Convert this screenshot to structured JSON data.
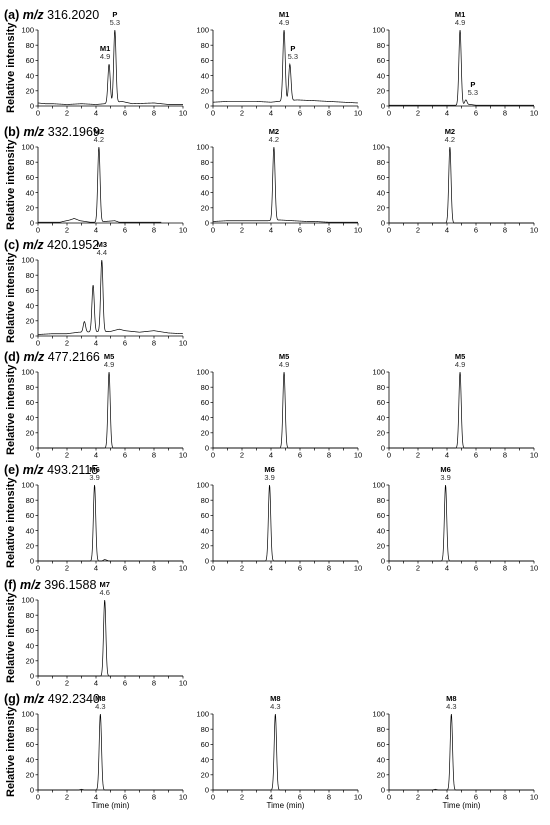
{
  "ylabel": "Relative intensity",
  "xlabel": "Time (min)",
  "chart_data": [
    {
      "type": "line",
      "row": "a",
      "id": "a1",
      "xlim": [
        0,
        10
      ],
      "ylim": [
        0,
        100
      ],
      "xticks": [
        0,
        1,
        2,
        3,
        4,
        5,
        6,
        7,
        8,
        9,
        10
      ],
      "yticks": [
        0,
        20,
        40,
        60,
        80,
        100
      ],
      "peaks": [
        {
          "label": "M1",
          "rt": "4.9",
          "x": 4.9,
          "y": 55
        },
        {
          "label": "P",
          "rt": "5.3",
          "x": 5.3,
          "y": 100
        }
      ],
      "baseline": [
        [
          0,
          4
        ],
        [
          0.5,
          3
        ],
        [
          1,
          3
        ],
        [
          2,
          2
        ],
        [
          3,
          3
        ],
        [
          4,
          2
        ],
        [
          4.6,
          3
        ],
        [
          5.8,
          6
        ],
        [
          6.5,
          3
        ],
        [
          8,
          4
        ],
        [
          9,
          2
        ],
        [
          10,
          2
        ]
      ]
    },
    {
      "type": "line",
      "row": "a",
      "id": "a2",
      "xlim": [
        0,
        10
      ],
      "ylim": [
        0,
        100
      ],
      "xticks": [
        0,
        1,
        2,
        3,
        4,
        5,
        6,
        7,
        8,
        9,
        10
      ],
      "yticks": [
        0,
        20,
        40,
        60,
        80,
        100
      ],
      "peaks": [
        {
          "label": "M1",
          "rt": "4.9",
          "x": 4.9,
          "y": 100
        },
        {
          "label": "P",
          "rt": "5.3",
          "x": 5.3,
          "y": 55
        }
      ],
      "baseline": [
        [
          0,
          5
        ],
        [
          1,
          6
        ],
        [
          2,
          6
        ],
        [
          3,
          6
        ],
        [
          4,
          5
        ],
        [
          4.5,
          6
        ],
        [
          5.8,
          8
        ],
        [
          7,
          7
        ],
        [
          8,
          6
        ],
        [
          9,
          5
        ],
        [
          10,
          4
        ]
      ]
    },
    {
      "type": "line",
      "row": "a",
      "id": "a3",
      "xlim": [
        0,
        10
      ],
      "ylim": [
        0,
        100
      ],
      "xticks": [
        0,
        1,
        2,
        3,
        4,
        5,
        6,
        7,
        8,
        9,
        10
      ],
      "yticks": [
        0,
        20,
        40,
        60,
        80,
        100
      ],
      "peaks": [
        {
          "label": "M1",
          "rt": "4.9",
          "x": 4.9,
          "y": 100
        },
        {
          "label": "P",
          "rt": "5.3",
          "x": 5.3,
          "y": 8
        }
      ],
      "baseline": [
        [
          0,
          1
        ],
        [
          2,
          1
        ],
        [
          4,
          1
        ],
        [
          4.6,
          1
        ],
        [
          5.6,
          2
        ],
        [
          6,
          1
        ],
        [
          8,
          1
        ],
        [
          10,
          1
        ]
      ]
    },
    {
      "type": "line",
      "row": "b",
      "id": "b1",
      "xlim": [
        0,
        10
      ],
      "ylim": [
        0,
        100
      ],
      "xticks": [
        0,
        1,
        2,
        3,
        4,
        5,
        6,
        7,
        8,
        9,
        10
      ],
      "yticks": [
        0,
        20,
        40,
        60,
        80,
        100
      ],
      "peaks": [
        {
          "label": "M2",
          "rt": "4.2",
          "x": 4.2,
          "y": 100
        }
      ],
      "baseline": [
        [
          0,
          1
        ],
        [
          1.5,
          1
        ],
        [
          2.2,
          4
        ],
        [
          2.5,
          6
        ],
        [
          2.9,
          3
        ],
        [
          3.6,
          1
        ],
        [
          3.9,
          1
        ],
        [
          4.6,
          2
        ],
        [
          5.3,
          3
        ],
        [
          5.6,
          1
        ],
        [
          7,
          1
        ],
        [
          8.5,
          1
        ]
      ]
    },
    {
      "type": "line",
      "row": "b",
      "id": "b2",
      "xlim": [
        0,
        10
      ],
      "ylim": [
        0,
        100
      ],
      "xticks": [
        0,
        1,
        2,
        3,
        4,
        5,
        6,
        7,
        8,
        9,
        10
      ],
      "yticks": [
        0,
        20,
        40,
        60,
        80,
        100
      ],
      "peaks": [
        {
          "label": "M2",
          "rt": "4.2",
          "x": 4.2,
          "y": 100
        }
      ],
      "baseline": [
        [
          0,
          2
        ],
        [
          1,
          3
        ],
        [
          2,
          3
        ],
        [
          3,
          3
        ],
        [
          3.8,
          3
        ],
        [
          4.6,
          4
        ],
        [
          5.5,
          3
        ],
        [
          6.5,
          2
        ],
        [
          7,
          2
        ],
        [
          8,
          1
        ],
        [
          10,
          1
        ]
      ]
    },
    {
      "type": "line",
      "row": "b",
      "id": "b3",
      "xlim": [
        0,
        10
      ],
      "ylim": [
        0,
        100
      ],
      "xticks": [
        0,
        1,
        2,
        3,
        4,
        5,
        6,
        7,
        8,
        9,
        10
      ],
      "yticks": [
        0,
        20,
        40,
        60,
        80,
        100
      ],
      "peaks": [
        {
          "label": "M2",
          "rt": "4.2",
          "x": 4.2,
          "y": 100
        }
      ],
      "baseline": [
        [
          0,
          0
        ],
        [
          10,
          0
        ]
      ]
    },
    {
      "type": "line",
      "row": "c",
      "id": "c1",
      "xlim": [
        0,
        10
      ],
      "ylim": [
        0,
        100
      ],
      "xticks": [
        0,
        1,
        2,
        3,
        4,
        5,
        6,
        7,
        8,
        9,
        10
      ],
      "yticks": [
        0,
        20,
        40,
        60,
        80,
        100
      ],
      "peaks": [
        {
          "label": "M3",
          "rt": "4.4",
          "x": 4.4,
          "y": 100
        },
        {
          "label": "",
          "rt": "",
          "x": 3.8,
          "y": 67
        },
        {
          "label": "",
          "rt": "",
          "x": 3.2,
          "y": 19
        }
      ],
      "baseline": [
        [
          0,
          2
        ],
        [
          1,
          3
        ],
        [
          2,
          3
        ],
        [
          2.8,
          5
        ],
        [
          5,
          6
        ],
        [
          5.6,
          9
        ],
        [
          6,
          7
        ],
        [
          7,
          5
        ],
        [
          8,
          7
        ],
        [
          9,
          4
        ],
        [
          10,
          3
        ]
      ]
    },
    {
      "type": "line",
      "row": "d",
      "id": "d1",
      "xlim": [
        0,
        10
      ],
      "ylim": [
        0,
        100
      ],
      "xticks": [
        0,
        1,
        2,
        3,
        4,
        5,
        6,
        7,
        8,
        9,
        10
      ],
      "yticks": [
        0,
        20,
        40,
        60,
        80,
        100
      ],
      "peaks": [
        {
          "label": "M5",
          "rt": "4.9",
          "x": 4.9,
          "y": 100
        }
      ],
      "baseline": [
        [
          0,
          0
        ],
        [
          10,
          0
        ]
      ]
    },
    {
      "type": "line",
      "row": "d",
      "id": "d2",
      "xlim": [
        0,
        10
      ],
      "ylim": [
        0,
        100
      ],
      "xticks": [
        0,
        1,
        2,
        3,
        4,
        5,
        6,
        7,
        8,
        9,
        10
      ],
      "yticks": [
        0,
        20,
        40,
        60,
        80,
        100
      ],
      "peaks": [
        {
          "label": "M5",
          "rt": "4.9",
          "x": 4.9,
          "y": 100
        }
      ],
      "baseline": [
        [
          0,
          0
        ],
        [
          10,
          0
        ]
      ]
    },
    {
      "type": "line",
      "row": "d",
      "id": "d3",
      "xlim": [
        0,
        10
      ],
      "ylim": [
        0,
        100
      ],
      "xticks": [
        0,
        1,
        2,
        3,
        4,
        5,
        6,
        7,
        8,
        9,
        10
      ],
      "yticks": [
        0,
        20,
        40,
        60,
        80,
        100
      ],
      "peaks": [
        {
          "label": "M5",
          "rt": "4.9",
          "x": 4.9,
          "y": 100
        }
      ],
      "baseline": [
        [
          0,
          0
        ],
        [
          10,
          0
        ]
      ]
    },
    {
      "type": "line",
      "row": "e",
      "id": "e1",
      "xlim": [
        0,
        10
      ],
      "ylim": [
        0,
        100
      ],
      "xticks": [
        0,
        1,
        2,
        3,
        4,
        5,
        6,
        7,
        8,
        9,
        10
      ],
      "yticks": [
        0,
        20,
        40,
        60,
        80,
        100
      ],
      "peaks": [
        {
          "label": "M6",
          "rt": "3.9",
          "x": 3.9,
          "y": 100
        }
      ],
      "baseline": [
        [
          0,
          0
        ],
        [
          4.4,
          0
        ],
        [
          4.6,
          2
        ],
        [
          4.9,
          0
        ],
        [
          10,
          0
        ]
      ]
    },
    {
      "type": "line",
      "row": "e",
      "id": "e2",
      "xlim": [
        0,
        10
      ],
      "ylim": [
        0,
        100
      ],
      "xticks": [
        0,
        1,
        2,
        3,
        4,
        5,
        6,
        7,
        8,
        9,
        10
      ],
      "yticks": [
        0,
        20,
        40,
        60,
        80,
        100
      ],
      "peaks": [
        {
          "label": "M6",
          "rt": "3.9",
          "x": 3.9,
          "y": 100
        }
      ],
      "baseline": [
        [
          0,
          0
        ],
        [
          10,
          0
        ]
      ]
    },
    {
      "type": "line",
      "row": "e",
      "id": "e3",
      "xlim": [
        0,
        10
      ],
      "ylim": [
        0,
        100
      ],
      "xticks": [
        0,
        1,
        2,
        3,
        4,
        5,
        6,
        7,
        8,
        9,
        10
      ],
      "yticks": [
        0,
        20,
        40,
        60,
        80,
        100
      ],
      "peaks": [
        {
          "label": "M6",
          "rt": "3.9",
          "x": 3.9,
          "y": 100
        }
      ],
      "baseline": [
        [
          0,
          0
        ],
        [
          10,
          0
        ]
      ]
    },
    {
      "type": "line",
      "row": "f",
      "id": "f1",
      "xlim": [
        0,
        10
      ],
      "ylim": [
        0,
        100
      ],
      "xticks": [
        0,
        1,
        2,
        3,
        4,
        5,
        6,
        7,
        8,
        9,
        10
      ],
      "yticks": [
        0,
        20,
        40,
        60,
        80,
        100
      ],
      "peaks": [
        {
          "label": "M7",
          "rt": "4.6",
          "x": 4.6,
          "y": 100
        }
      ],
      "baseline": [
        [
          0,
          0
        ],
        [
          10,
          0
        ]
      ]
    },
    {
      "type": "line",
      "row": "g",
      "id": "g1",
      "xlim": [
        0,
        10
      ],
      "ylim": [
        0,
        100
      ],
      "xticks": [
        0,
        1,
        2,
        3,
        4,
        5,
        6,
        7,
        8,
        9,
        10
      ],
      "yticks": [
        0,
        20,
        40,
        60,
        80,
        100
      ],
      "peaks": [
        {
          "label": "M8",
          "rt": "4.3",
          "x": 4.3,
          "y": 100
        }
      ],
      "baseline": [
        [
          0,
          0
        ],
        [
          2.8,
          0
        ],
        [
          3,
          1
        ],
        [
          3.2,
          0
        ],
        [
          10,
          0
        ]
      ]
    },
    {
      "type": "line",
      "row": "g",
      "id": "g2",
      "xlim": [
        0,
        10
      ],
      "ylim": [
        0,
        100
      ],
      "xticks": [
        0,
        1,
        2,
        3,
        4,
        5,
        6,
        7,
        8,
        9,
        10
      ],
      "yticks": [
        0,
        20,
        40,
        60,
        80,
        100
      ],
      "peaks": [
        {
          "label": "M8",
          "rt": "4.3",
          "x": 4.3,
          "y": 100
        }
      ],
      "baseline": [
        [
          0,
          0
        ],
        [
          10,
          0
        ]
      ]
    },
    {
      "type": "line",
      "row": "g",
      "id": "g3",
      "xlim": [
        0,
        10
      ],
      "ylim": [
        0,
        100
      ],
      "xticks": [
        0,
        1,
        2,
        3,
        4,
        5,
        6,
        7,
        8,
        9,
        10
      ],
      "yticks": [
        0,
        20,
        40,
        60,
        80,
        100
      ],
      "peaks": [
        {
          "label": "M8",
          "rt": "4.3",
          "x": 4.3,
          "y": 100
        }
      ],
      "baseline": [
        [
          0,
          0
        ],
        [
          3,
          0
        ],
        [
          3.2,
          1
        ],
        [
          3.4,
          0
        ],
        [
          10,
          0
        ]
      ]
    }
  ],
  "rows": [
    {
      "id": "a",
      "tag": "(a)",
      "mz": "m/z",
      "mass": "316.2020"
    },
    {
      "id": "b",
      "tag": "(b)",
      "mz": "m/z",
      "mass": "332.1969"
    },
    {
      "id": "c",
      "tag": "(c)",
      "mz": "m/z",
      "mass": "420.1952"
    },
    {
      "id": "d",
      "tag": "(d)",
      "mz": "m/z",
      "mass": "477.2166"
    },
    {
      "id": "e",
      "tag": "(e)",
      "mz": "m/z",
      "mass": "493.2115"
    },
    {
      "id": "f",
      "tag": "(f)",
      "mz": "m/z",
      "mass": "396.1588"
    },
    {
      "id": "g",
      "tag": "(g)",
      "mz": "m/z",
      "mass": "492.2340"
    }
  ]
}
